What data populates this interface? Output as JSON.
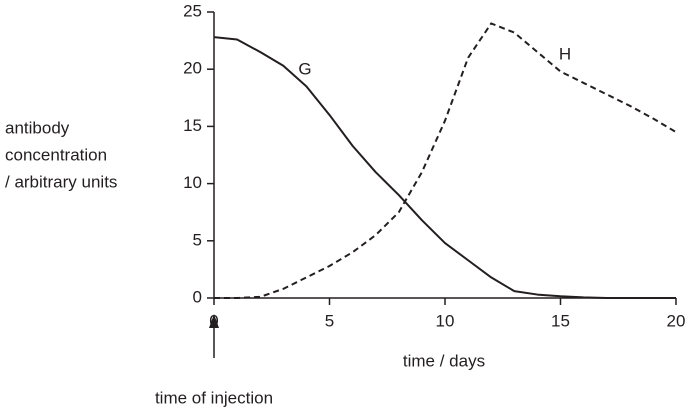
{
  "chart_data": {
    "type": "line",
    "ylabel": [
      "antibody",
      "concentration",
      "/ arbitrary units"
    ],
    "xlabel": "time / days",
    "annotation": "time of injection",
    "x": [
      0,
      1,
      2,
      3,
      4,
      5,
      6,
      7,
      8,
      9,
      10,
      11,
      12,
      13,
      14,
      15,
      16,
      17,
      18,
      19,
      20
    ],
    "series": [
      {
        "name": "G",
        "color": "#231f20",
        "dash": "solid",
        "values": [
          22.8,
          22.6,
          21.5,
          20.3,
          18.5,
          16,
          13.3,
          11,
          9,
          6.8,
          4.8,
          3.3,
          1.8,
          0.6,
          0.3,
          0.15,
          0.05,
          0,
          0,
          0,
          0
        ]
      },
      {
        "name": "H",
        "color": "#231f20",
        "dash": "dashed",
        "values": [
          0,
          0,
          0.1,
          0.8,
          1.8,
          2.8,
          4,
          5.5,
          7.5,
          11,
          15.5,
          21,
          24,
          23.2,
          21.5,
          19.8,
          18.8,
          17.8,
          16.8,
          15.7,
          14.5
        ]
      }
    ],
    "xlim": [
      0,
      20
    ],
    "xticks": [
      0,
      5,
      10,
      15,
      20
    ],
    "ylim": [
      0,
      25
    ],
    "yticks": [
      0,
      5,
      10,
      15,
      20,
      25
    ],
    "grid": false
  }
}
